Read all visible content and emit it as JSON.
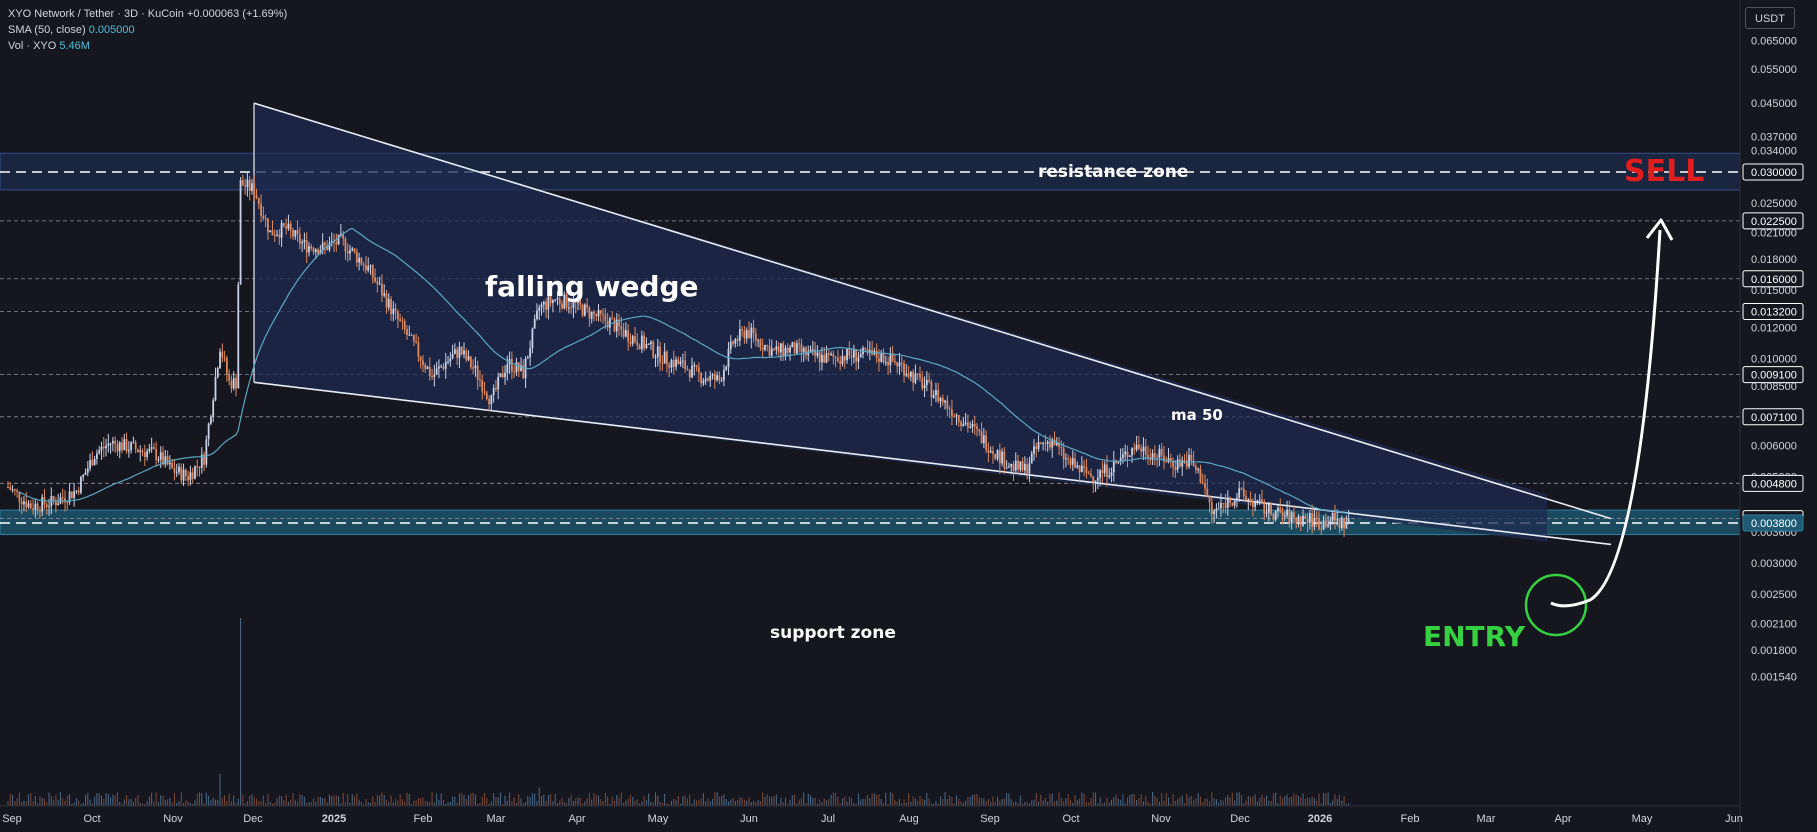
{
  "legend": {
    "symbol": "XYO Network / Tether · 3D · KuCoin",
    "change": "+0.000063 (+1.69%)",
    "sma_label": "SMA (50, close)",
    "sma_value": "0.005000",
    "vol_label": "Vol · XYO",
    "vol_value": "5.46M"
  },
  "currency": "USDT",
  "colors": {
    "background": "#16161f",
    "bullish": "#c9d2e8",
    "bearish": "#e0895e",
    "sma": "#5aa7c4",
    "wedge_fill": "#1d2b50",
    "support_fill": "#1b4a5e",
    "sell": "#e01e1e",
    "entry": "#35d140"
  },
  "chart_data": {
    "type": "candlestick",
    "scale": "log",
    "x_ticks": [
      "Sep",
      "Oct",
      "Nov",
      "Dec",
      "2025",
      "Feb",
      "Mar",
      "Apr",
      "May",
      "Jun",
      "Jul",
      "Aug",
      "Sep",
      "Oct",
      "Nov",
      "Dec",
      "2026",
      "Feb",
      "Mar",
      "Apr",
      "May",
      "Jun"
    ],
    "y_ticks": [
      "0.065000",
      "0.055000",
      "0.045000",
      "0.037000",
      "0.034000",
      "0.025000",
      "0.021000",
      "0.018000",
      "0.015000",
      "0.012000",
      "0.010000",
      "0.008500",
      "0.006000",
      "0.005000",
      "0.003600",
      "0.003000",
      "0.002500",
      "0.002100",
      "0.001800",
      "0.001540"
    ],
    "y_labels_boxed": [
      "0.030000",
      "0.022500",
      "0.016000",
      "0.013200",
      "0.009100",
      "0.007100",
      "0.004800",
      "0.003900",
      "0.003800"
    ],
    "horizontal_levels": [
      0.03,
      0.0225,
      0.016,
      0.0132,
      0.0091,
      0.0071,
      0.0048,
      0.0039,
      0.0038
    ],
    "price_path": [
      [
        0,
        0.0047
      ],
      [
        10,
        0.0042
      ],
      [
        20,
        0.0043
      ],
      [
        30,
        0.0046
      ],
      [
        38,
        0.0057
      ],
      [
        45,
        0.0061
      ],
      [
        55,
        0.0059
      ],
      [
        65,
        0.0057
      ],
      [
        72,
        0.0052
      ],
      [
        79,
        0.005
      ],
      [
        86,
        0.0056
      ],
      [
        93,
        0.0108
      ],
      [
        97,
        0.0087
      ],
      [
        100,
        0.0087
      ],
      [
        102,
        0.028
      ],
      [
        108,
        0.027
      ],
      [
        115,
        0.021
      ],
      [
        122,
        0.0215
      ],
      [
        130,
        0.0195
      ],
      [
        138,
        0.0192
      ],
      [
        146,
        0.02
      ],
      [
        152,
        0.0185
      ],
      [
        158,
        0.017
      ],
      [
        164,
        0.0148
      ],
      [
        170,
        0.0128
      ],
      [
        178,
        0.0108
      ],
      [
        186,
        0.009
      ],
      [
        192,
        0.0098
      ],
      [
        198,
        0.0105
      ],
      [
        205,
        0.0093
      ],
      [
        212,
        0.0078
      ],
      [
        219,
        0.0098
      ],
      [
        226,
        0.0092
      ],
      [
        233,
        0.0135
      ],
      [
        240,
        0.0142
      ],
      [
        248,
        0.0138
      ],
      [
        256,
        0.013
      ],
      [
        264,
        0.0124
      ],
      [
        272,
        0.0115
      ],
      [
        280,
        0.0108
      ],
      [
        288,
        0.01
      ],
      [
        296,
        0.0096
      ],
      [
        304,
        0.009
      ],
      [
        312,
        0.0088
      ],
      [
        318,
        0.011
      ],
      [
        324,
        0.0118
      ],
      [
        330,
        0.011
      ],
      [
        336,
        0.0104
      ],
      [
        344,
        0.0106
      ],
      [
        352,
        0.0102
      ],
      [
        360,
        0.01
      ],
      [
        368,
        0.0102
      ],
      [
        376,
        0.0102
      ],
      [
        384,
        0.0101
      ],
      [
        392,
        0.0096
      ],
      [
        398,
        0.0089
      ],
      [
        404,
        0.0084
      ],
      [
        410,
        0.0078
      ],
      [
        416,
        0.0072
      ],
      [
        422,
        0.0067
      ],
      [
        428,
        0.0062
      ],
      [
        434,
        0.0057
      ],
      [
        440,
        0.0053
      ],
      [
        446,
        0.0052
      ],
      [
        452,
        0.006
      ],
      [
        458,
        0.0062
      ],
      [
        464,
        0.0055
      ],
      [
        470,
        0.0052
      ],
      [
        476,
        0.005
      ],
      [
        482,
        0.0052
      ],
      [
        488,
        0.0055
      ],
      [
        494,
        0.006
      ],
      [
        500,
        0.0058
      ],
      [
        506,
        0.0056
      ],
      [
        512,
        0.0054
      ],
      [
        518,
        0.0055
      ],
      [
        524,
        0.0049
      ],
      [
        528,
        0.004
      ],
      [
        534,
        0.0043
      ],
      [
        540,
        0.0045
      ],
      [
        546,
        0.0043
      ],
      [
        552,
        0.0041
      ],
      [
        558,
        0.004
      ],
      [
        564,
        0.0039
      ],
      [
        570,
        0.0039
      ],
      [
        576,
        0.0038
      ],
      [
        580,
        0.0039
      ],
      [
        584,
        0.0038
      ],
      [
        588,
        0.0038
      ]
    ],
    "annotations": {
      "pattern": "falling wedge",
      "resistance": "resistance zone",
      "support": "support zone",
      "ma": "ma 50",
      "sell": "SELL",
      "entry": "ENTRY"
    }
  }
}
